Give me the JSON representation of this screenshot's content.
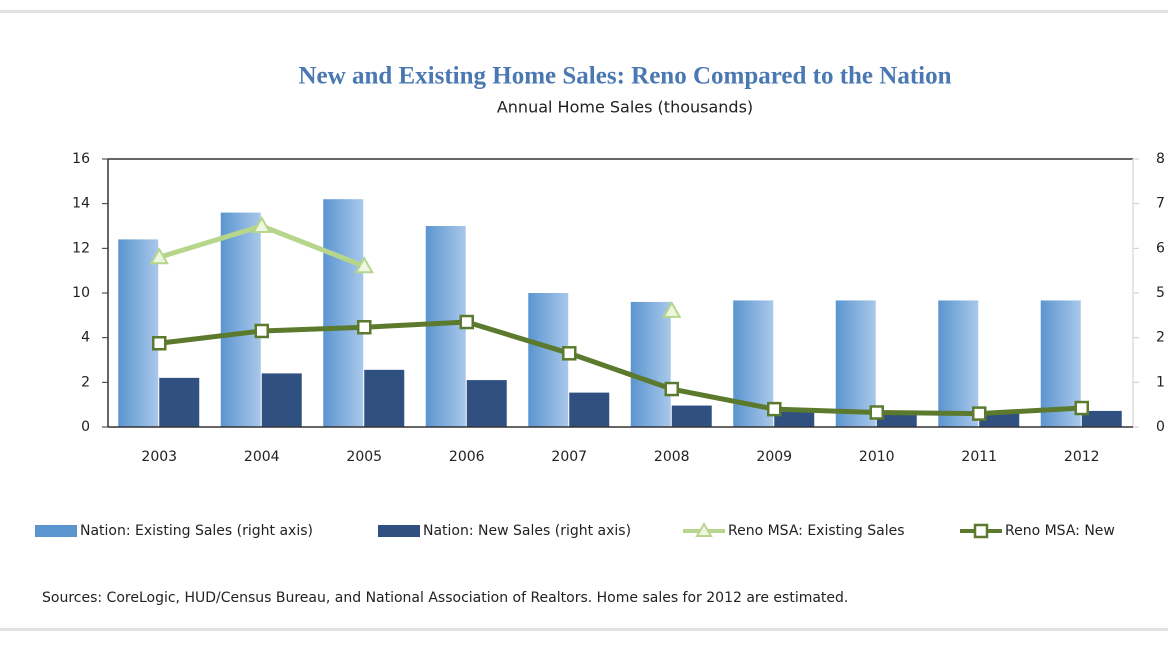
{
  "chart_data": {
    "type": "bar-line",
    "title": "New and Existing Home Sales: Reno Compared to the Nation",
    "subtitle": "Annual Home Sales (thousands)",
    "categories": [
      "2003",
      "2004",
      "2005",
      "2006",
      "2007",
      "2008",
      "2009",
      "2010",
      "2011",
      "2012"
    ],
    "ylim": [
      0,
      16
    ],
    "yticks": [
      0,
      2,
      4,
      10,
      12,
      14,
      16
    ],
    "y2lim": [
      0,
      8
    ],
    "y2ticks": [
      0,
      1,
      2,
      5,
      6,
      7,
      8
    ],
    "series": [
      {
        "name": "Nation: Existing Sales (right axis)",
        "type": "bar",
        "axis": "y2",
        "color": "#5b95d0",
        "values": [
          6.2,
          6.8,
          7.1,
          6.5,
          5.0,
          4.4,
          4.5,
          4.5,
          4.5,
          4.5
        ]
      },
      {
        "name": "Nation: New Sales (right axis)",
        "type": "bar",
        "axis": "y2",
        "color": "#2f5080",
        "values": [
          1.1,
          1.2,
          1.28,
          1.05,
          0.77,
          0.48,
          0.37,
          0.32,
          0.31,
          0.36
        ]
      },
      {
        "name": "Reno MSA: Existing Sales",
        "type": "line",
        "color": "#b6d68c",
        "values": [
          11.6,
          13.0,
          11.2,
          null,
          null,
          7.6,
          null,
          null,
          null,
          null
        ]
      },
      {
        "name": "Reno MSA: New",
        "type": "line",
        "color": "#5c7a2e",
        "values": [
          3.75,
          4.9,
          5.4,
          6.1,
          3.3,
          1.7,
          0.8,
          0.65,
          0.6,
          0.85
        ]
      }
    ],
    "note": "Sources: CoreLogic, HUD/Census  Bureau, and National Association of Realtors. Home sales for 2012 are estimated."
  }
}
